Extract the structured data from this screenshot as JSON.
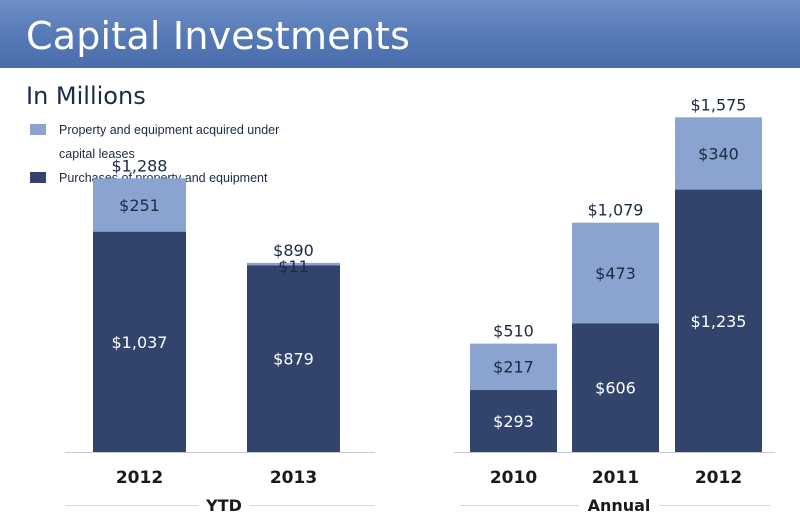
{
  "header": {
    "title": "Capital Investments"
  },
  "subtitle": "In Millions",
  "colors": {
    "header": "#5579b6",
    "light_series": "#8aa3cf",
    "dark_series": "#32446c",
    "text": "#1c2a44"
  },
  "legend": [
    {
      "label": "Property and equipment acquired under capital leases",
      "color": "#8aa3cf"
    },
    {
      "label": "Purchases of property and equipment",
      "color": "#32446c"
    }
  ],
  "chart_data": [
    {
      "type": "bar",
      "stacked": true,
      "group_label": "YTD",
      "categories": [
        "2012",
        "2013"
      ],
      "series": [
        {
          "name": "Purchases of property and equipment",
          "values": [
            1037,
            879
          ],
          "labels": [
            "$1,037",
            "$879"
          ]
        },
        {
          "name": "Property and equipment acquired under capital leases",
          "values": [
            251,
            11
          ],
          "labels": [
            "$251",
            "$11"
          ]
        }
      ],
      "totals": [
        1288,
        890
      ],
      "total_labels": [
        "$1,288",
        "$890"
      ],
      "ylim": [
        0,
        1600
      ],
      "grid": false
    },
    {
      "type": "bar",
      "stacked": true,
      "group_label": "Annual",
      "categories": [
        "2010",
        "2011",
        "2012"
      ],
      "series": [
        {
          "name": "Purchases of property and equipment",
          "values": [
            293,
            606,
            1235
          ],
          "labels": [
            "$293",
            "$606",
            "$1,235"
          ]
        },
        {
          "name": "Property and equipment acquired under capital leases",
          "values": [
            217,
            473,
            340
          ],
          "labels": [
            "$217",
            "$473",
            "$340"
          ]
        }
      ],
      "totals": [
        510,
        1079,
        1575
      ],
      "total_labels": [
        "$510",
        "$1,079",
        "$1,575"
      ],
      "ylim": [
        0,
        1600
      ],
      "grid": false
    }
  ]
}
